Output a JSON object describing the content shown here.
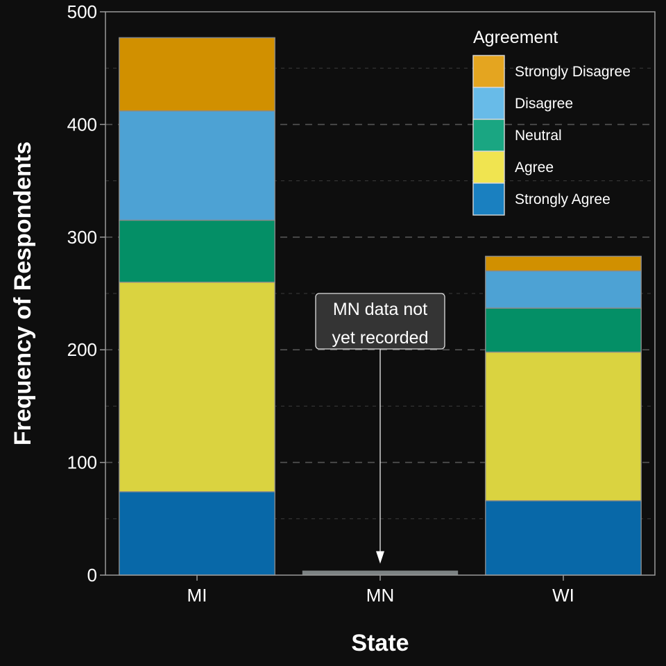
{
  "chart_data": {
    "type": "bar",
    "stacked": true,
    "xlabel": "State",
    "ylabel": "Frequency of Respondents",
    "categories": [
      "MI",
      "MN",
      "WI"
    ],
    "ylim": [
      0,
      500
    ],
    "yticks": [
      0,
      100,
      200,
      300,
      400,
      500
    ],
    "grid": true,
    "legend": {
      "title": "Agreement",
      "placement": "top-right"
    },
    "series": [
      {
        "name": "Strongly Agree",
        "color": "#0868a8",
        "legend_color": "#1a80c0",
        "values": [
          74,
          0,
          66
        ]
      },
      {
        "name": "Agree",
        "color": "#dad340",
        "legend_color": "#f0e450",
        "values": [
          186,
          0,
          132
        ]
      },
      {
        "name": "Neutral",
        "color": "#048f66",
        "legend_color": "#1aa682",
        "values": [
          55,
          0,
          39
        ]
      },
      {
        "name": "Disagree",
        "color": "#4da2d4",
        "legend_color": "#68bbe8",
        "values": [
          97,
          0,
          33
        ]
      },
      {
        "name": "Strongly Disagree",
        "color": "#d19000",
        "legend_color": "#e4a520",
        "values": [
          65,
          0,
          13
        ]
      }
    ],
    "placeholder_bar": {
      "category": "MN",
      "value": 4,
      "color": "#7d8384"
    },
    "annotation": {
      "lines": [
        "MN data not",
        "yet recorded"
      ],
      "target_category": "MN",
      "target_value": 4
    }
  }
}
